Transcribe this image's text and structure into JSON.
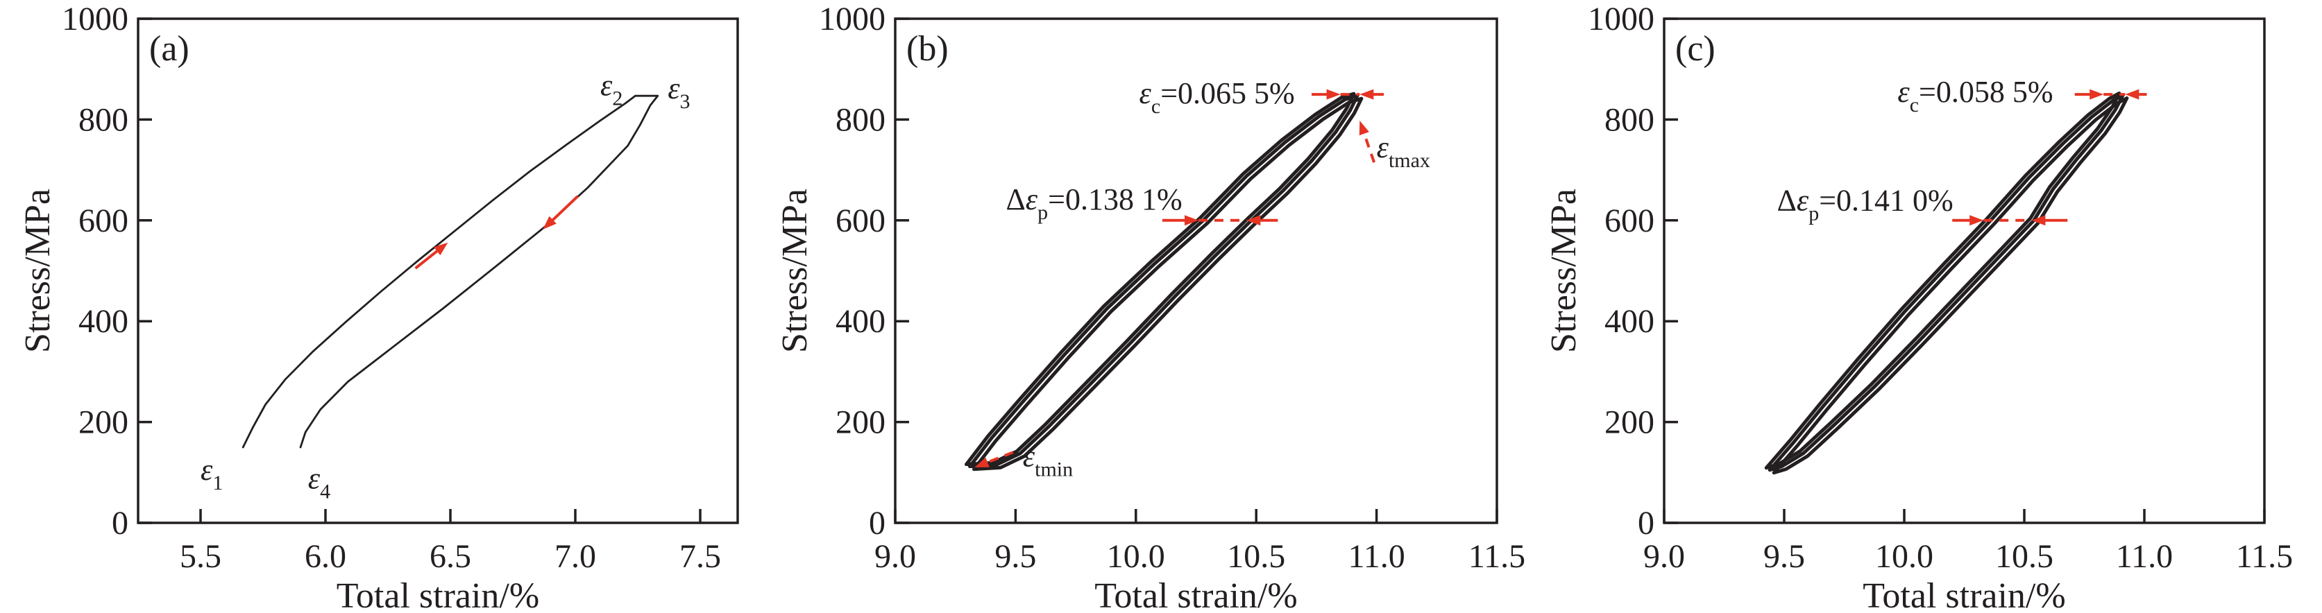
{
  "figure": {
    "ink_color": "#231f20",
    "accent_red": "#e53423",
    "background": "#ffffff"
  },
  "chart_data": [
    {
      "type": "line",
      "panel_label": "(a)",
      "xlabel": "Total strain/%",
      "ylabel": "Stress/MPa",
      "xlim": [
        5.25,
        7.65
      ],
      "ylim": [
        0,
        1000
      ],
      "grid": false,
      "xticks": [
        {
          "v": 5.5,
          "label": "5.5"
        },
        {
          "v": 6.0,
          "label": "6.0"
        },
        {
          "v": 6.5,
          "label": "6.5"
        },
        {
          "v": 7.0,
          "label": "7.0"
        },
        {
          "v": 7.5,
          "label": "7.5"
        }
      ],
      "yticks": [
        {
          "v": 0,
          "label": "0"
        },
        {
          "v": 200,
          "label": "200"
        },
        {
          "v": 400,
          "label": "400"
        },
        {
          "v": 600,
          "label": "600"
        },
        {
          "v": 800,
          "label": "800"
        },
        {
          "v": 1000,
          "label": "1000"
        }
      ],
      "series": [
        {
          "name": "hysteresis-loop",
          "color": "#231f20",
          "width": 2.8,
          "closed": false,
          "offsets": [
            [
              0,
              0
            ]
          ],
          "points": [
            [
              5.67,
              150
            ],
            [
              5.71,
              190
            ],
            [
              5.76,
              235
            ],
            [
              5.84,
              285
            ],
            [
              5.95,
              340
            ],
            [
              6.08,
              398
            ],
            [
              6.22,
              458
            ],
            [
              6.37,
              520
            ],
            [
              6.52,
              580
            ],
            [
              6.67,
              640
            ],
            [
              6.82,
              698
            ],
            [
              6.97,
              752
            ],
            [
              7.1,
              798
            ],
            [
              7.2,
              832
            ],
            [
              7.24,
              847
            ],
            [
              7.33,
              847
            ],
            [
              7.3,
              828
            ],
            [
              7.26,
              790
            ],
            [
              7.21,
              748
            ],
            [
              7.05,
              665
            ],
            [
              6.88,
              588
            ],
            [
              6.68,
              508
            ],
            [
              6.47,
              425
            ],
            [
              6.26,
              345
            ],
            [
              6.09,
              280
            ],
            [
              5.98,
              225
            ],
            [
              5.92,
              180
            ],
            [
              5.9,
              150
            ]
          ]
        }
      ],
      "annotations": [
        {
          "kind": "text",
          "name": "label-epsilon-1",
          "x": 5.5,
          "y": 85,
          "anchor": "start",
          "size": 44,
          "parts": [
            {
              "t": "ε",
              "i": true
            },
            {
              "t": "1",
              "sub": true
            }
          ]
        },
        {
          "kind": "text",
          "name": "label-epsilon-4",
          "x": 5.93,
          "y": 68,
          "anchor": "start",
          "size": 44,
          "parts": [
            {
              "t": "ε",
              "i": true
            },
            {
              "t": "4",
              "sub": true
            }
          ]
        },
        {
          "kind": "text",
          "name": "label-epsilon-2",
          "x": 7.1,
          "y": 848,
          "anchor": "start",
          "size": 44,
          "parts": [
            {
              "t": "ε",
              "i": true
            },
            {
              "t": "2",
              "sub": true
            }
          ]
        },
        {
          "kind": "text",
          "name": "label-epsilon-3",
          "x": 7.37,
          "y": 842,
          "anchor": "start",
          "size": 44,
          "parts": [
            {
              "t": "ε",
              "i": true
            },
            {
              "t": "3",
              "sub": true
            }
          ]
        },
        {
          "kind": "arrow",
          "name": "loading-direction-arrow",
          "from": [
            6.36,
            505
          ],
          "to": [
            6.49,
            556
          ],
          "dash": false
        },
        {
          "kind": "arrow",
          "name": "unloading-direction-arrow",
          "from": [
            7.01,
            648
          ],
          "to": [
            6.87,
            582
          ],
          "dash": false
        }
      ]
    },
    {
      "type": "line",
      "panel_label": "(b)",
      "xlabel": "Total strain/%",
      "ylabel": "Stress/MPa",
      "xlim": [
        9.0,
        11.5
      ],
      "ylim": [
        0,
        1000
      ],
      "grid": false,
      "xticks": [
        {
          "v": 9.0,
          "label": "9.0"
        },
        {
          "v": 9.5,
          "label": "9.5"
        },
        {
          "v": 10.0,
          "label": "10.0"
        },
        {
          "v": 10.5,
          "label": "10.5"
        },
        {
          "v": 11.0,
          "label": "11.0"
        },
        {
          "v": 11.5,
          "label": "11.5"
        }
      ],
      "yticks": [
        {
          "v": 0,
          "label": "0"
        },
        {
          "v": 200,
          "label": "200"
        },
        {
          "v": 400,
          "label": "400"
        },
        {
          "v": 600,
          "label": "600"
        },
        {
          "v": 800,
          "label": "800"
        },
        {
          "v": 1000,
          "label": "1000"
        }
      ],
      "series": [
        {
          "name": "hysteresis-loop-cycles",
          "color": "#231f20",
          "width": 5,
          "closed": true,
          "offsets": [
            [
              0,
              0
            ],
            [
              6,
              4
            ],
            [
              -5,
              -3
            ]
          ],
          "points": [
            [
              9.31,
              112
            ],
            [
              9.4,
              168
            ],
            [
              9.53,
              240
            ],
            [
              9.7,
              332
            ],
            [
              9.88,
              425
            ],
            [
              10.08,
              515
            ],
            [
              10.28,
              600
            ],
            [
              10.46,
              688
            ],
            [
              10.62,
              755
            ],
            [
              10.76,
              806
            ],
            [
              10.87,
              840
            ],
            [
              10.92,
              847
            ],
            [
              10.89,
              818
            ],
            [
              10.83,
              775
            ],
            [
              10.73,
              718
            ],
            [
              10.61,
              658
            ],
            [
              10.48,
              600
            ],
            [
              10.33,
              530
            ],
            [
              10.16,
              448
            ],
            [
              9.98,
              358
            ],
            [
              9.8,
              270
            ],
            [
              9.64,
              192
            ],
            [
              9.52,
              138
            ],
            [
              9.42,
              115
            ]
          ]
        }
      ],
      "annotations": [
        {
          "kind": "text",
          "name": "label-epsilon-c",
          "x": 10.66,
          "y": 832,
          "anchor": "end",
          "size": 44,
          "parts": [
            {
              "t": "ε",
              "i": true
            },
            {
              "t": "c",
              "sub": true
            },
            {
              "t": "=0.065 5%"
            }
          ]
        },
        {
          "kind": "arrow",
          "name": "tip-arrow-left",
          "from": [
            10.73,
            850
          ],
          "to": [
            10.85,
            850
          ],
          "dash": false
        },
        {
          "kind": "line",
          "name": "tip-dash",
          "from": [
            10.85,
            850
          ],
          "to": [
            10.93,
            850
          ],
          "dash": true
        },
        {
          "kind": "arrow",
          "name": "tip-arrow-right",
          "from": [
            11.03,
            850
          ],
          "to": [
            10.93,
            850
          ],
          "dash": false
        },
        {
          "kind": "arrow",
          "name": "epsilon-tmax-arrow",
          "from": [
            10.99,
            715
          ],
          "to": [
            10.93,
            798
          ],
          "dash": true
        },
        {
          "kind": "text",
          "name": "label-epsilon-tmax",
          "x": 11.0,
          "y": 725,
          "anchor": "start",
          "size": 44,
          "color": "#231f20",
          "parts": [
            {
              "t": "ε",
              "i": true
            },
            {
              "t": "tmax",
              "sub": true
            }
          ]
        },
        {
          "kind": "text",
          "name": "label-delta-epsilon-p",
          "x": 9.46,
          "y": 622,
          "anchor": "start",
          "size": 44,
          "parts": [
            {
              "t": "Δ"
            },
            {
              "t": "ε",
              "i": true
            },
            {
              "t": "p",
              "sub": true
            },
            {
              "t": "=0.138 1%"
            }
          ]
        },
        {
          "kind": "arrow",
          "name": "width-arrow-left",
          "from": [
            10.11,
            600
          ],
          "to": [
            10.26,
            600
          ],
          "dash": false
        },
        {
          "kind": "line",
          "name": "width-dash",
          "from": [
            10.26,
            600
          ],
          "to": [
            10.46,
            600
          ],
          "dash": true
        },
        {
          "kind": "arrow",
          "name": "width-arrow-right",
          "from": [
            10.59,
            600
          ],
          "to": [
            10.46,
            600
          ],
          "dash": false
        },
        {
          "kind": "arrow",
          "name": "epsilon-tmin-arrow",
          "from": [
            9.49,
            140
          ],
          "to": [
            9.33,
            110
          ],
          "dash": true
        },
        {
          "kind": "text",
          "name": "label-epsilon-tmin",
          "x": 9.53,
          "y": 112,
          "anchor": "start",
          "size": 44,
          "color": "#231f20",
          "parts": [
            {
              "t": "ε",
              "i": true
            },
            {
              "t": "tmin",
              "sub": true
            }
          ]
        }
      ]
    },
    {
      "type": "line",
      "panel_label": "(c)",
      "xlabel": "Total strain/%",
      "ylabel": "Stress/MPa",
      "xlim": [
        9.0,
        11.5
      ],
      "ylim": [
        0,
        1000
      ],
      "grid": false,
      "xticks": [
        {
          "v": 9.0,
          "label": "9.0"
        },
        {
          "v": 9.5,
          "label": "9.5"
        },
        {
          "v": 10.0,
          "label": "10.0"
        },
        {
          "v": 10.5,
          "label": "10.5"
        },
        {
          "v": 11.0,
          "label": "11.0"
        },
        {
          "v": 11.5,
          "label": "11.5"
        }
      ],
      "yticks": [
        {
          "v": 0,
          "label": "0"
        },
        {
          "v": 200,
          "label": "200"
        },
        {
          "v": 400,
          "label": "400"
        },
        {
          "v": 600,
          "label": "600"
        },
        {
          "v": 800,
          "label": "800"
        },
        {
          "v": 1000,
          "label": "1000"
        }
      ],
      "series": [
        {
          "name": "hysteresis-loop-cycles",
          "color": "#231f20",
          "width": 5,
          "closed": true,
          "offsets": [
            [
              0,
              0
            ],
            [
              6,
              4
            ],
            [
              -5,
              -3
            ]
          ],
          "points": [
            [
              9.44,
              105
            ],
            [
              9.54,
              160
            ],
            [
              9.66,
              230
            ],
            [
              9.82,
              320
            ],
            [
              10.0,
              418
            ],
            [
              10.18,
              510
            ],
            [
              10.36,
              600
            ],
            [
              10.52,
              685
            ],
            [
              10.66,
              752
            ],
            [
              10.78,
              805
            ],
            [
              10.87,
              838
            ],
            [
              10.91,
              848
            ],
            [
              10.88,
              820
            ],
            [
              10.82,
              778
            ],
            [
              10.72,
              722
            ],
            [
              10.62,
              662
            ],
            [
              10.54,
              600
            ],
            [
              10.4,
              530
            ],
            [
              10.24,
              450
            ],
            [
              10.06,
              360
            ],
            [
              9.88,
              272
            ],
            [
              9.71,
              195
            ],
            [
              9.58,
              138
            ],
            [
              9.49,
              112
            ]
          ]
        }
      ],
      "annotations": [
        {
          "kind": "text",
          "name": "label-epsilon-c",
          "x": 10.62,
          "y": 835,
          "anchor": "end",
          "size": 44,
          "parts": [
            {
              "t": "ε",
              "i": true
            },
            {
              "t": "c",
              "sub": true
            },
            {
              "t": "=0.058 5%"
            }
          ]
        },
        {
          "kind": "arrow",
          "name": "tip-arrow-left",
          "from": [
            10.71,
            850
          ],
          "to": [
            10.83,
            850
          ],
          "dash": false
        },
        {
          "kind": "line",
          "name": "tip-dash",
          "from": [
            10.83,
            850
          ],
          "to": [
            10.92,
            850
          ],
          "dash": true
        },
        {
          "kind": "arrow",
          "name": "tip-arrow-right",
          "from": [
            11.01,
            850
          ],
          "to": [
            10.92,
            850
          ],
          "dash": false
        },
        {
          "kind": "text",
          "name": "label-delta-epsilon-p",
          "x": 9.47,
          "y": 620,
          "anchor": "start",
          "size": 44,
          "parts": [
            {
              "t": "Δ"
            },
            {
              "t": "ε",
              "i": true
            },
            {
              "t": "p",
              "sub": true
            },
            {
              "t": "=0.141 0%"
            }
          ]
        },
        {
          "kind": "arrow",
          "name": "width-arrow-left",
          "from": [
            10.2,
            600
          ],
          "to": [
            10.33,
            600
          ],
          "dash": false
        },
        {
          "kind": "line",
          "name": "width-dash",
          "from": [
            10.33,
            600
          ],
          "to": [
            10.53,
            600
          ],
          "dash": true
        },
        {
          "kind": "arrow",
          "name": "width-arrow-right",
          "from": [
            10.68,
            600
          ],
          "to": [
            10.53,
            600
          ],
          "dash": false
        }
      ]
    }
  ]
}
